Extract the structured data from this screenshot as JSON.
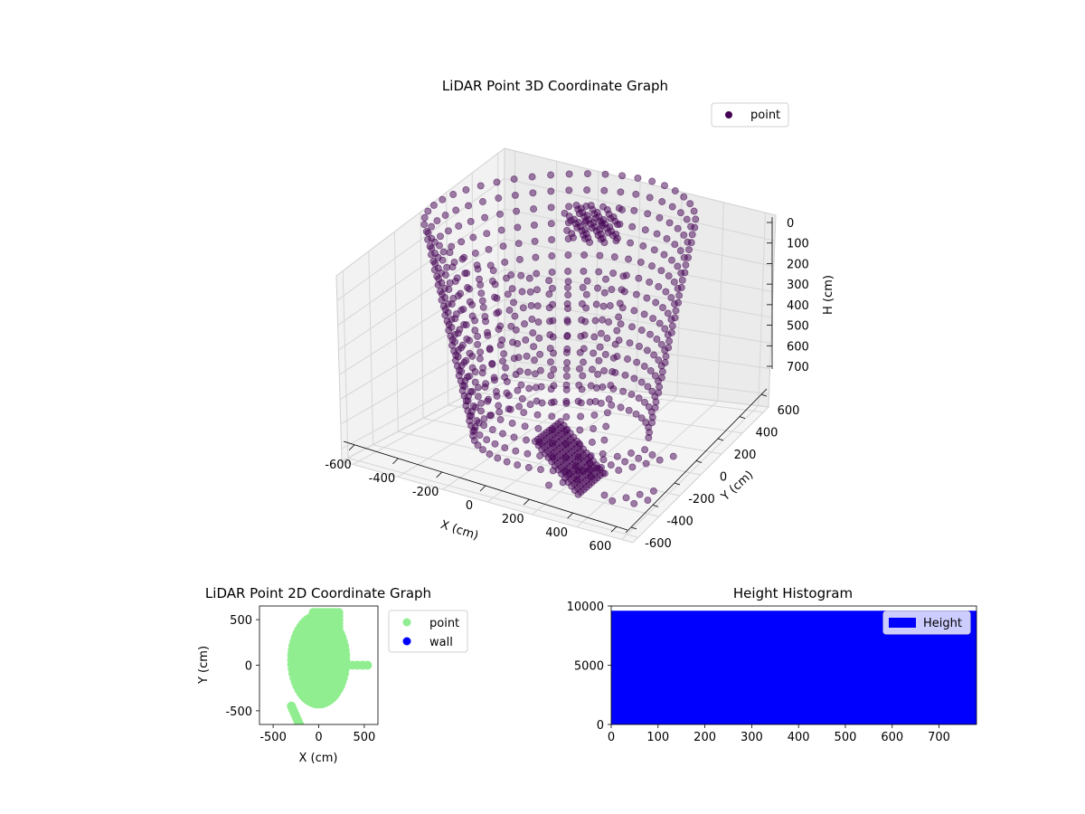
{
  "chart_data": [
    {
      "type": "scatter",
      "projection": "3d",
      "title": "LiDAR Point 3D Coordinate Graph",
      "xlabel": "X (cm)",
      "ylabel": "Y (cm)",
      "zlabel": "H (cm)",
      "xlim": [
        -650,
        650
      ],
      "ylim": [
        -650,
        650
      ],
      "zlim": [
        750,
        0
      ],
      "xticks": [
        -600,
        -400,
        -200,
        0,
        200,
        400,
        600
      ],
      "yticks": [
        -600,
        -400,
        -200,
        0,
        200,
        400,
        600
      ],
      "zticks": [
        0,
        100,
        200,
        300,
        400,
        500,
        600,
        700
      ],
      "zaxis_inverted": true,
      "grid": true,
      "legend": "top-right",
      "series": [
        {
          "name": "point",
          "color": "#440154",
          "alpha": 0.5,
          "description_shape": "ring of vertical arcs around origin, radius about 600 cm, heights 0 to 750 cm"
        }
      ]
    },
    {
      "type": "scatter",
      "title": "LiDAR Point 2D Coordinate Graph",
      "xlabel": "X (cm)",
      "ylabel": "Y (cm)",
      "xlim": [
        -650,
        650
      ],
      "ylim": [
        -650,
        650
      ],
      "xticks": [
        -500,
        0,
        500
      ],
      "yticks": [
        -500,
        0,
        500
      ],
      "legend": "outside-right",
      "series": [
        {
          "name": "point",
          "color": "#90ee90"
        },
        {
          "name": "wall",
          "color": "#0000ff"
        }
      ]
    },
    {
      "type": "bar",
      "subtype": "histogram",
      "title": "Height Histogram",
      "xlim": [
        0,
        780
      ],
      "ylim": [
        0,
        10000
      ],
      "xticks": [
        0,
        100,
        200,
        300,
        400,
        500,
        600,
        700
      ],
      "yticks": [
        0,
        5000,
        10000
      ],
      "legend": "top-right",
      "series": [
        {
          "name": "Height",
          "color": "#0000ff",
          "value": 9600,
          "bin_range": [
            0,
            780
          ]
        }
      ]
    }
  ]
}
